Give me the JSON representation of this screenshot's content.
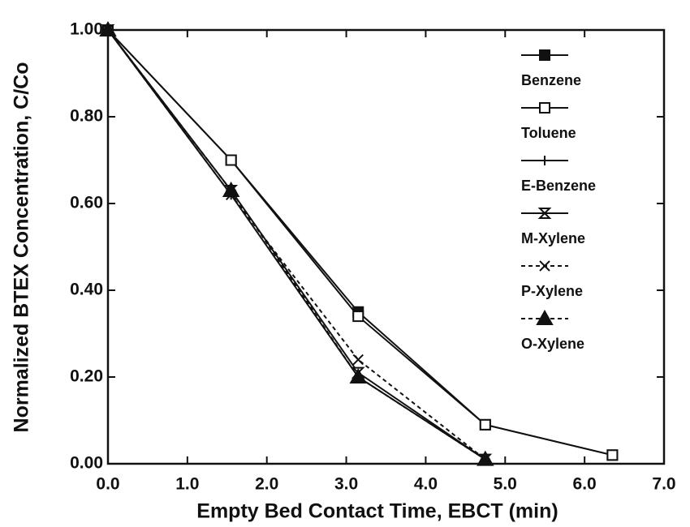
{
  "chart_data": {
    "type": "line",
    "xlabel": "Empty Bed Contact Time, EBCT (min)",
    "ylabel": "Normalized BTEX Concentration, C/Co",
    "x": [
      0,
      1.55,
      3.15,
      4.75,
      6.35
    ],
    "series": [
      {
        "name": "Benzene",
        "color": "#111",
        "marker": "square-filled",
        "dash": false,
        "values": [
          1.0,
          0.7,
          0.35,
          0.09,
          0.02
        ]
      },
      {
        "name": "Toluene",
        "color": "#111",
        "marker": "square-open",
        "dash": false,
        "values": [
          1.0,
          0.7,
          0.34,
          0.09,
          0.02
        ]
      },
      {
        "name": "E-Benzene",
        "color": "#111",
        "marker": "plus",
        "dash": false,
        "values": [
          1.0,
          0.62,
          0.2,
          0.01,
          null
        ]
      },
      {
        "name": "M-Xylene",
        "color": "#111",
        "marker": "hourglass",
        "dash": false,
        "values": [
          1.0,
          0.63,
          0.21,
          0.01,
          null
        ]
      },
      {
        "name": "P-Xylene",
        "color": "#111",
        "marker": "x",
        "dash": true,
        "values": [
          1.0,
          0.62,
          0.24,
          0.01,
          null
        ]
      },
      {
        "name": "O-Xylene",
        "color": "#111",
        "marker": "triangle-filled",
        "dash": true,
        "values": [
          1.0,
          0.63,
          0.2,
          0.01,
          null
        ]
      }
    ],
    "xlim": [
      0,
      7
    ],
    "xticks": [
      {
        "value": 0,
        "label": "0.0"
      },
      {
        "value": 1,
        "label": "1.0"
      },
      {
        "value": 2,
        "label": "2.0"
      },
      {
        "value": 3,
        "label": "3.0"
      },
      {
        "value": 4,
        "label": "4.0"
      },
      {
        "value": 5,
        "label": "5.0"
      },
      {
        "value": 6,
        "label": "6.0"
      },
      {
        "value": 7,
        "label": "7.0"
      }
    ],
    "ylim": [
      0,
      1
    ],
    "yticks": [
      {
        "value": 0,
        "label": "0.00"
      },
      {
        "value": 0.2,
        "label": "0.20"
      },
      {
        "value": 0.4,
        "label": "0.40"
      },
      {
        "value": 0.6,
        "label": "0.60"
      },
      {
        "value": 0.8,
        "label": "0.80"
      },
      {
        "value": 1,
        "label": "1.00"
      }
    ],
    "legend": "upper right"
  }
}
